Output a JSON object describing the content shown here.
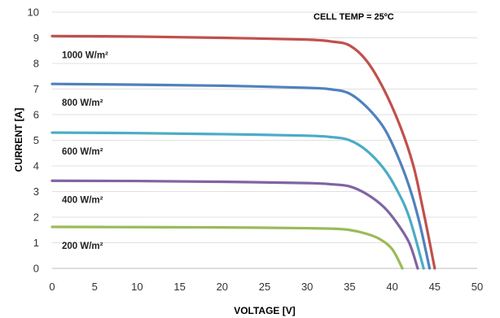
{
  "chart_data": {
    "type": "line",
    "title": "",
    "annotation": "CELL TEMP = 25ºC",
    "xlabel": "VOLTAGE [V]",
    "ylabel": "CURRENT [A]",
    "xlim": [
      0,
      50
    ],
    "ylim": [
      0,
      10
    ],
    "x_ticks": [
      "0",
      "5",
      "10",
      "15",
      "20",
      "25",
      "30",
      "35",
      "40",
      "45",
      "50"
    ],
    "y_ticks": [
      "0",
      "1",
      "2",
      "3",
      "4",
      "5",
      "6",
      "7",
      "8",
      "9",
      "10"
    ],
    "grid": "horizontal",
    "legend": "inline labels",
    "series": [
      {
        "name": "1000 W/m²",
        "color": "#c0504d",
        "points": [
          [
            0,
            9.07
          ],
          [
            10,
            9.05
          ],
          [
            20,
            9.0
          ],
          [
            30,
            8.93
          ],
          [
            33,
            8.85
          ],
          [
            35,
            8.7
          ],
          [
            37,
            8.1
          ],
          [
            39,
            7.0
          ],
          [
            41,
            5.5
          ],
          [
            42.5,
            4.0
          ],
          [
            43.5,
            2.5
          ],
          [
            44.3,
            1.2
          ],
          [
            45.0,
            0
          ]
        ]
      },
      {
        "name": "800 W/m²",
        "color": "#4f81bd",
        "points": [
          [
            0,
            7.2
          ],
          [
            10,
            7.17
          ],
          [
            20,
            7.13
          ],
          [
            30,
            7.05
          ],
          [
            33,
            6.98
          ],
          [
            35,
            6.82
          ],
          [
            37,
            6.3
          ],
          [
            39,
            5.5
          ],
          [
            40.5,
            4.5
          ],
          [
            42,
            3.2
          ],
          [
            43.2,
            1.8
          ],
          [
            44.4,
            0
          ]
        ]
      },
      {
        "name": "600 W/m²",
        "color": "#4bacc6",
        "points": [
          [
            0,
            5.3
          ],
          [
            10,
            5.28
          ],
          [
            20,
            5.24
          ],
          [
            30,
            5.18
          ],
          [
            33,
            5.12
          ],
          [
            35,
            5.0
          ],
          [
            37,
            4.6
          ],
          [
            39,
            3.9
          ],
          [
            40.5,
            3.1
          ],
          [
            42,
            2.0
          ],
          [
            43.7,
            0
          ]
        ]
      },
      {
        "name": "400 W/m²",
        "color": "#8064a2",
        "points": [
          [
            0,
            3.42
          ],
          [
            10,
            3.41
          ],
          [
            20,
            3.38
          ],
          [
            30,
            3.33
          ],
          [
            33,
            3.28
          ],
          [
            35,
            3.2
          ],
          [
            37,
            2.9
          ],
          [
            39,
            2.4
          ],
          [
            40.5,
            1.8
          ],
          [
            42,
            1.0
          ],
          [
            43.0,
            0
          ]
        ]
      },
      {
        "name": "200 W/m²",
        "color": "#9bbb59",
        "points": [
          [
            0,
            1.62
          ],
          [
            10,
            1.61
          ],
          [
            20,
            1.6
          ],
          [
            30,
            1.57
          ],
          [
            33,
            1.55
          ],
          [
            35,
            1.5
          ],
          [
            37,
            1.35
          ],
          [
            38.5,
            1.15
          ],
          [
            40,
            0.75
          ],
          [
            41.2,
            0
          ]
        ]
      }
    ]
  }
}
